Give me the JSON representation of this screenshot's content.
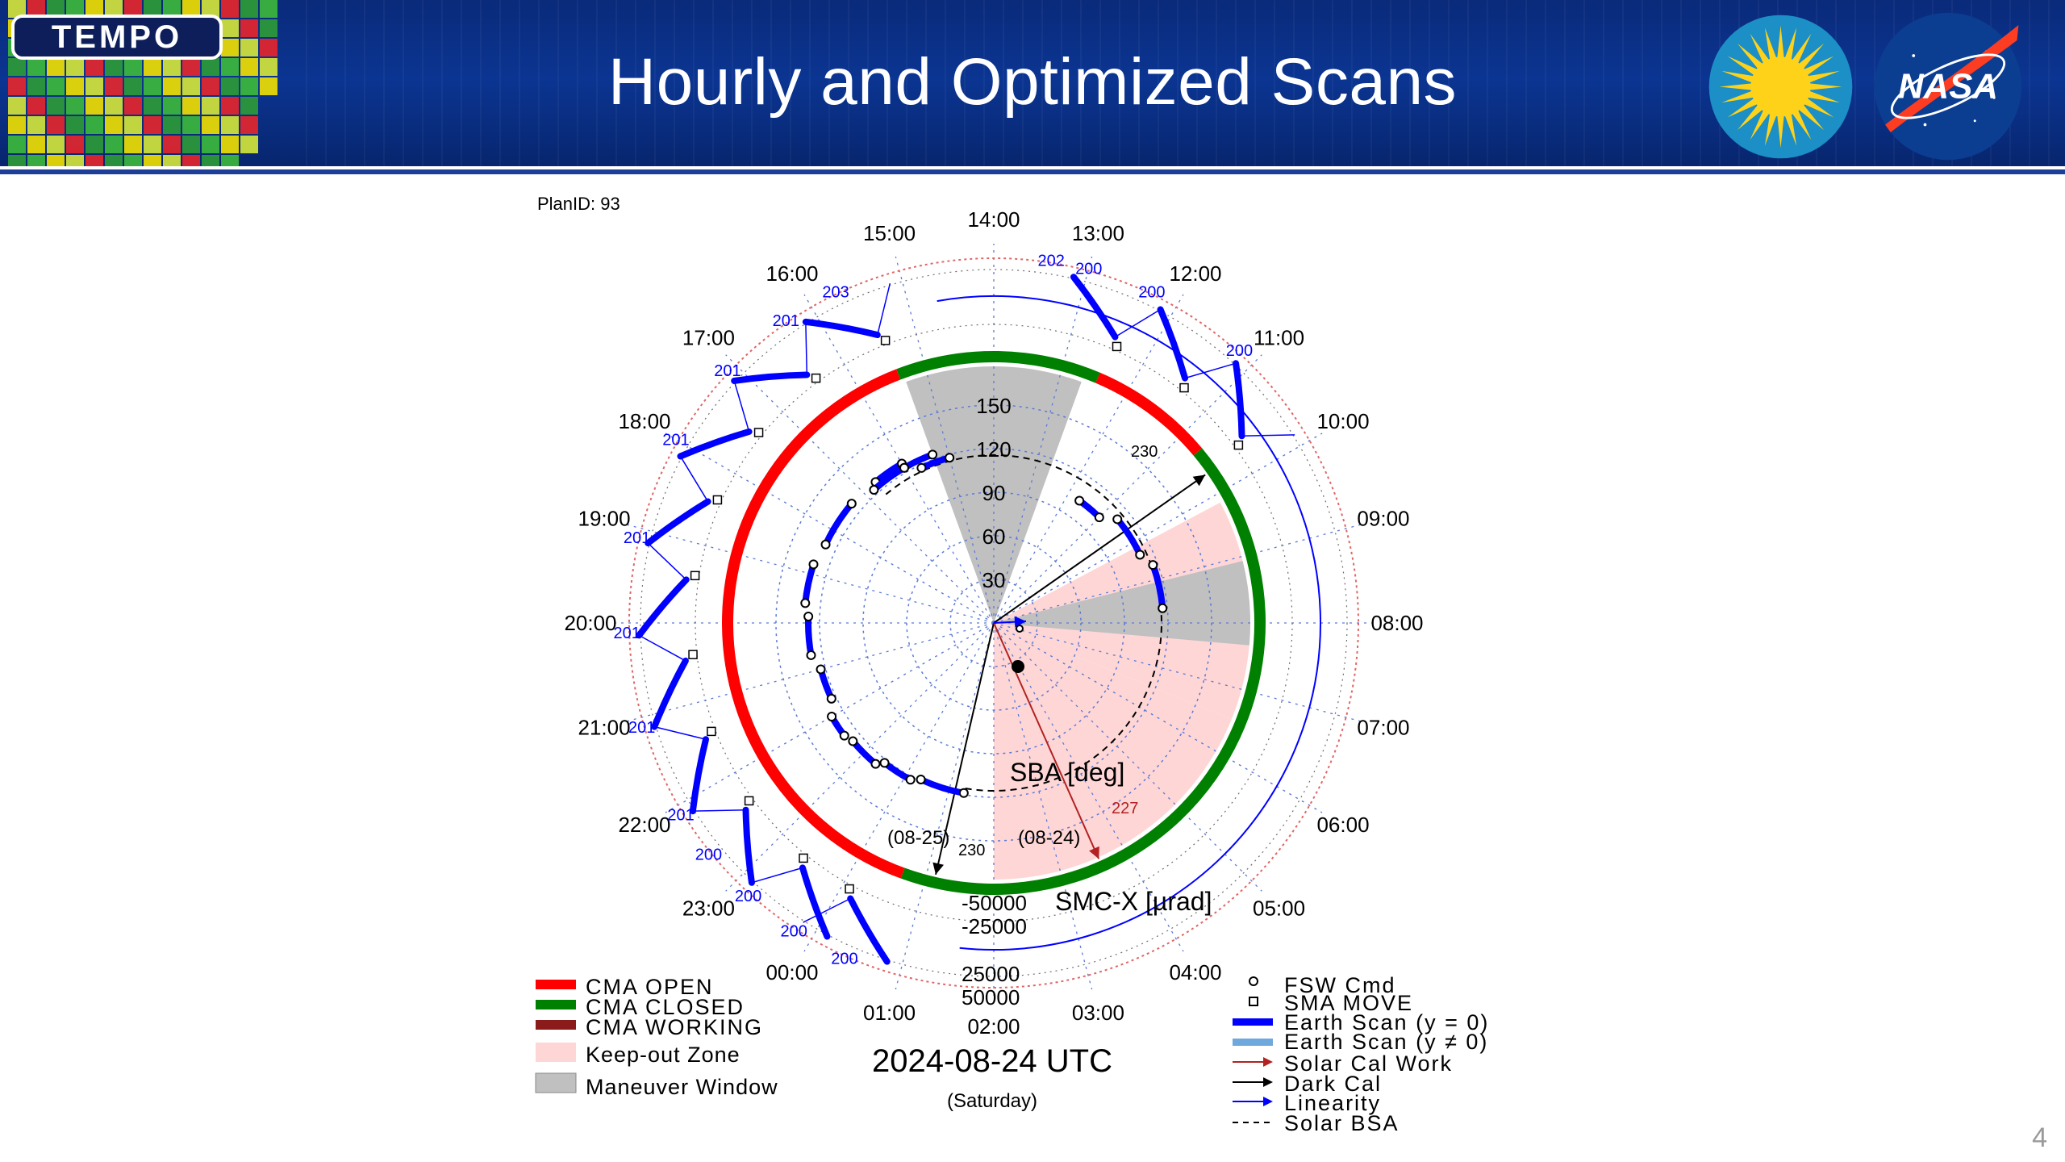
{
  "slide": {
    "title": "Hourly and Optimized Scans",
    "page_number": "4",
    "tempo_logo_text": "TEMPO",
    "nasa_logo_text": "NASA",
    "colors": {
      "header_blue": "#0b3592",
      "cma_open": "#ff0000",
      "cma_closed": "#008000",
      "cma_working": "#8b1a1a",
      "keepout": "#ffd6d6",
      "maneuver": "#c0c0c0",
      "earth_scan": "#0000ff"
    }
  },
  "diagram": {
    "plan_id": "PlanID: 93",
    "date_label": "2024-08-24 UTC",
    "day_label": "(Saturday)",
    "sba_label": "SBA [deg]",
    "smc_label": "SMC-X [µrad]",
    "date_tag_left": "(08-25)",
    "date_tag_right": "(08-24)",
    "hour_labels": [
      "00:00",
      "01:00",
      "02:00",
      "03:00",
      "04:00",
      "05:00",
      "06:00",
      "07:00",
      "08:00",
      "09:00",
      "10:00",
      "11:00",
      "12:00",
      "13:00",
      "14:00",
      "15:00",
      "16:00",
      "17:00",
      "18:00",
      "19:00",
      "20:00",
      "21:00",
      "22:00",
      "23:00"
    ],
    "sba_ticks": [
      "30",
      "60",
      "90",
      "120",
      "150"
    ],
    "smc_ticks_up": [
      "-50000",
      "-25000"
    ],
    "smc_ticks_down": [
      "25000",
      "50000"
    ],
    "arrow_labels": {
      "dark_cal_top": "230",
      "dark_cal_bottom": "230",
      "solar_cal": "227"
    },
    "scan_values": [
      {
        "hour": "11:00",
        "value": "200"
      },
      {
        "hour": "12:00",
        "value": "200"
      },
      {
        "hour": "13:00",
        "value": "200"
      },
      {
        "hour": "13:00b",
        "value": "202"
      },
      {
        "hour": "16:00",
        "value": "203"
      },
      {
        "hour": "16:00b",
        "value": "201"
      },
      {
        "hour": "17:00",
        "value": "201"
      },
      {
        "hour": "18:00",
        "value": "201"
      },
      {
        "hour": "19:00",
        "value": "201"
      },
      {
        "hour": "20:00",
        "value": "201"
      },
      {
        "hour": "21:00",
        "value": "201"
      },
      {
        "hour": "22:00",
        "value": "201"
      },
      {
        "hour": "22:30",
        "value": "200"
      },
      {
        "hour": "23:00",
        "value": "200"
      },
      {
        "hour": "23:30",
        "value": "200"
      },
      {
        "hour": "00:00",
        "value": "200"
      }
    ],
    "legend_left": [
      {
        "label": "CMA OPEN",
        "swatch": "#ff0000"
      },
      {
        "label": "CMA CLOSED",
        "swatch": "#008000"
      },
      {
        "label": "CMA WORKING",
        "swatch": "#8b1a1a"
      },
      {
        "label": "Keep-out Zone",
        "swatch": "#ffd6d6"
      },
      {
        "label": "Maneuver Window",
        "swatch": "#c0c0c0"
      }
    ],
    "legend_right": [
      {
        "label": "FSW Cmd",
        "symbol": "circle"
      },
      {
        "label": "SMA MOVE",
        "symbol": "square"
      },
      {
        "label": "Earth Scan (y = 0)",
        "symbol": "thick-blue"
      },
      {
        "label": "Earth Scan (y ≠ 0)",
        "symbol": "thick-lightblue"
      },
      {
        "label": "Solar Cal Work",
        "symbol": "arrow-darkred"
      },
      {
        "label": "Dark Cal",
        "symbol": "arrow-black"
      },
      {
        "label": "Linearity",
        "symbol": "arrow-blue"
      },
      {
        "label": "Solar BSA",
        "symbol": "dashed"
      }
    ]
  }
}
